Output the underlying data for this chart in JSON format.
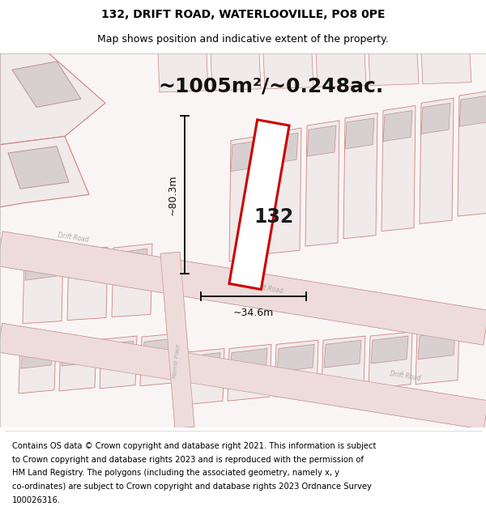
{
  "title_line1": "132, DRIFT ROAD, WATERLOOVILLE, PO8 0PE",
  "title_line2": "Map shows position and indicative extent of the property.",
  "area_text": "~1005m²/~0.248ac.",
  "dim_width": "~34.6m",
  "dim_height": "~80.3m",
  "property_number": "132",
  "footer_lines": [
    "Contains OS data © Crown copyright and database right 2021. This information is subject",
    "to Crown copyright and database rights 2023 and is reproduced with the permission of",
    "HM Land Registry. The polygons (including the associated geometry, namely x, y",
    "co-ordinates) are subject to Crown copyright and database rights 2023 Ordnance Survey",
    "100026316."
  ],
  "bg_color": "#ffffff",
  "highlight_color": "#cc0000",
  "title_fontsize": 10,
  "subtitle_fontsize": 9,
  "area_fontsize": 18,
  "footer_fontsize": 7.2,
  "road_color": "#e8b0b0",
  "plot_fill": "#f0eaea",
  "plot_edge": "#d08080",
  "building_fill": "#d8d0d0",
  "building_edge": "#c09090"
}
